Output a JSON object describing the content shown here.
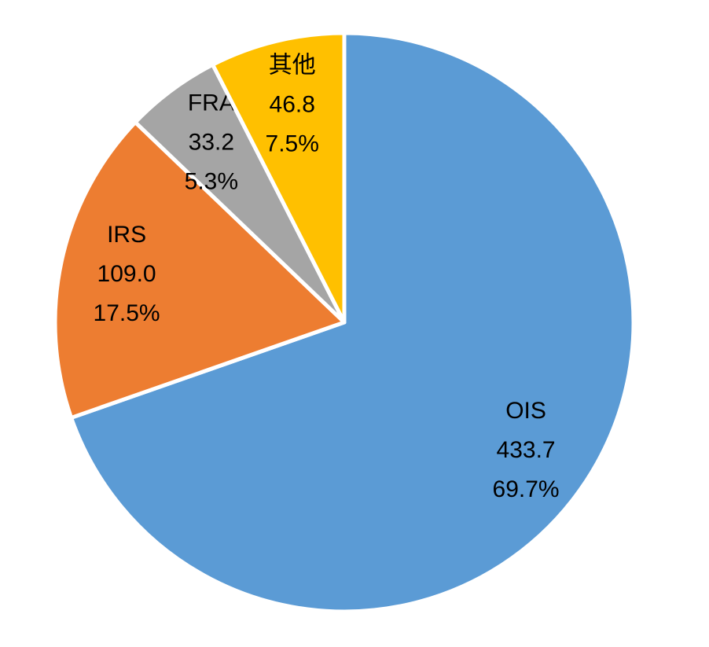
{
  "chart_data": {
    "type": "pie",
    "categories": [
      "OIS",
      "IRS",
      "FRA",
      "其他"
    ],
    "values": [
      433.7,
      109.0,
      33.2,
      46.8
    ],
    "value_labels": [
      "433.7",
      "109.0",
      "33.2",
      "46.8"
    ],
    "percents": [
      69.7,
      17.5,
      5.3,
      7.5
    ],
    "percent_labels": [
      "69.7%",
      "17.5%",
      "5.3%",
      "7.5%"
    ],
    "colors": [
      "#5b9bd5",
      "#ed7d31",
      "#a5a5a5",
      "#ffc000"
    ]
  }
}
